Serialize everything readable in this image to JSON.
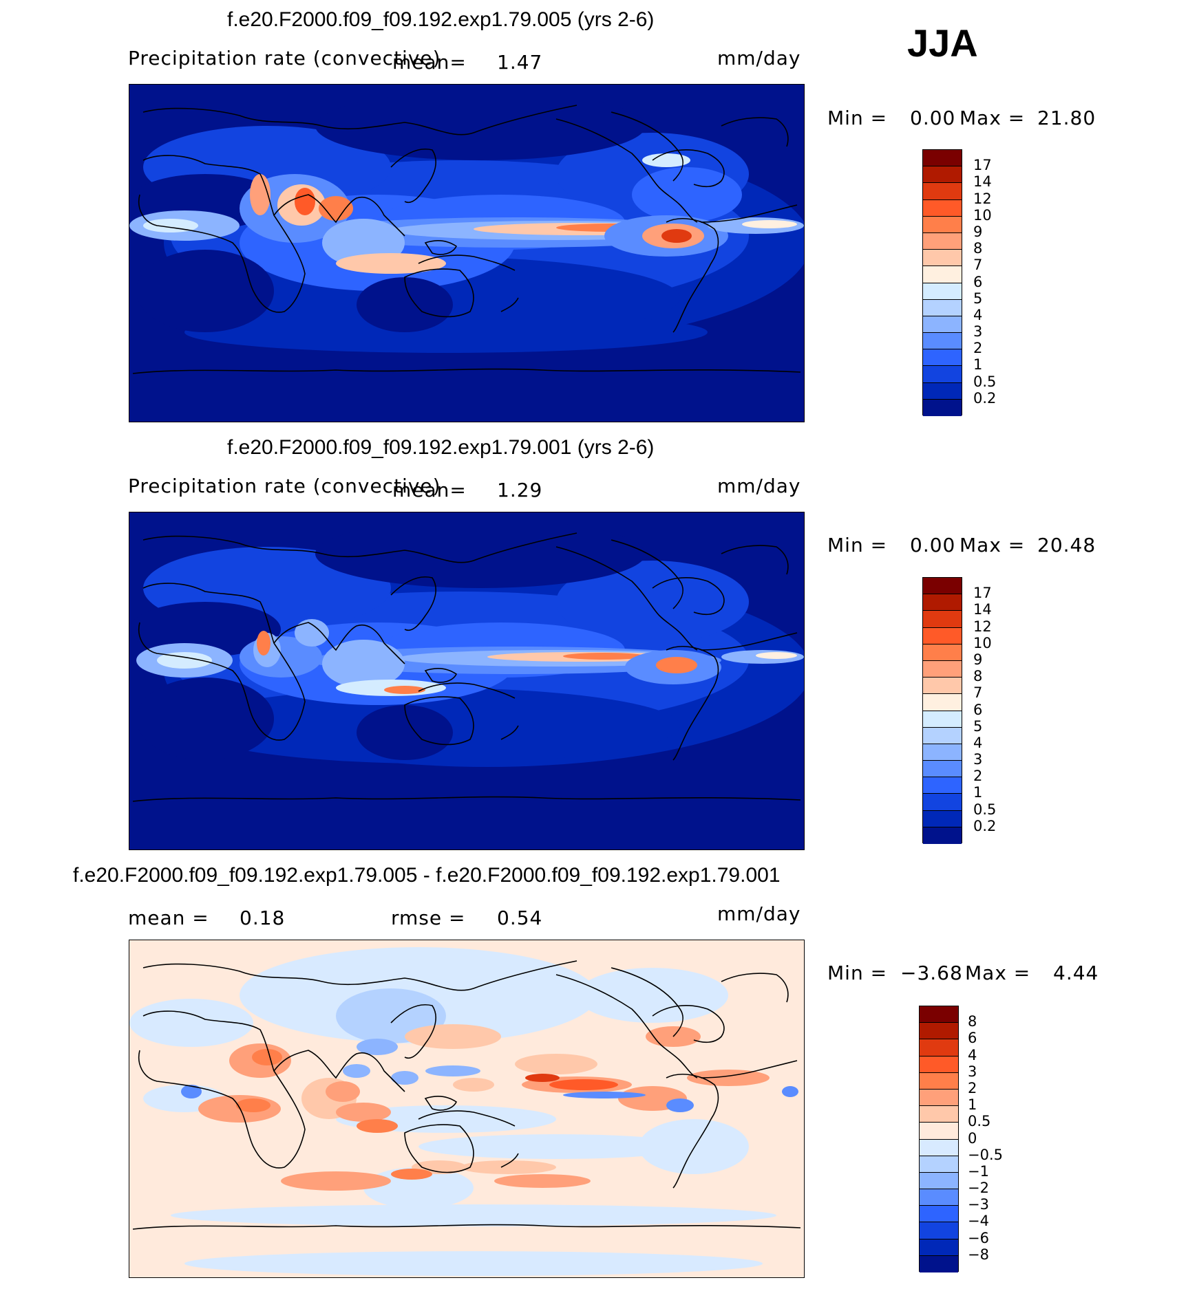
{
  "season": "JJA",
  "coast_color": "#000000",
  "panels": [
    {
      "id": "top",
      "title": "f.e20.F2000.f09_f09.192.exp1.79.005 (yrs 2-6)",
      "left_label": "Precipitation rate (convective)",
      "mean_label": "mean=",
      "mean_value": "1.47",
      "units": "mm/day",
      "min_label": "Min =",
      "min_value": "0.00",
      "max_label": "Max =",
      "max_value": "21.80",
      "colorbar_ticks": [
        "17",
        "14",
        "12",
        "10",
        "9",
        "8",
        "7",
        "6",
        "5",
        "4",
        "3",
        "2",
        "1",
        "0.5",
        "0.2"
      ],
      "colorbar_colors": [
        "#7a0000",
        "#b01a00",
        "#e03a10",
        "#ff5a28",
        "#ff7f4a",
        "#ffa07a",
        "#ffc8aa",
        "#fff0e0",
        "#d4ecff",
        "#b4d2ff",
        "#8cb4ff",
        "#5a8cff",
        "#2e64ff",
        "#1244e0",
        "#0028b8",
        "#00128c"
      ]
    },
    {
      "id": "middle",
      "title": "f.e20.F2000.f09_f09.192.exp1.79.001 (yrs 2-6)",
      "left_label": "Precipitation rate (convective)",
      "mean_label": "mean=",
      "mean_value": "1.29",
      "units": "mm/day",
      "min_label": "Min =",
      "min_value": "0.00",
      "max_label": "Max =",
      "max_value": "20.48",
      "colorbar_ticks": [
        "17",
        "14",
        "12",
        "10",
        "9",
        "8",
        "7",
        "6",
        "5",
        "4",
        "3",
        "2",
        "1",
        "0.5",
        "0.2"
      ],
      "colorbar_colors": [
        "#7a0000",
        "#b01a00",
        "#e03a10",
        "#ff5a28",
        "#ff7f4a",
        "#ffa07a",
        "#ffc8aa",
        "#fff0e0",
        "#d4ecff",
        "#b4d2ff",
        "#8cb4ff",
        "#5a8cff",
        "#2e64ff",
        "#1244e0",
        "#0028b8",
        "#00128c"
      ]
    },
    {
      "id": "diff",
      "title": "f.e20.F2000.f09_f09.192.exp1.79.005 - f.e20.F2000.f09_f09.192.exp1.79.001",
      "mean_label": "mean =",
      "mean_value": "0.18",
      "rmse_label": "rmse =",
      "rmse_value": "0.54",
      "units": "mm/day",
      "min_label": "Min =",
      "min_value": "−3.68",
      "max_label": "Max =",
      "max_value": "4.44",
      "colorbar_ticks": [
        "8",
        "6",
        "4",
        "3",
        "2",
        "1",
        "0.5",
        "0",
        "−0.5",
        "−1",
        "−2",
        "−3",
        "−4",
        "−6",
        "−8"
      ],
      "colorbar_colors": [
        "#7a0000",
        "#b01a00",
        "#e03a10",
        "#ff5a28",
        "#ff7f4a",
        "#ffa07a",
        "#ffc8aa",
        "#ffeadc",
        "#d8eaff",
        "#b4d2ff",
        "#8cb4ff",
        "#5a8cff",
        "#2e64ff",
        "#1244e0",
        "#0028b8",
        "#00128c"
      ]
    }
  ]
}
